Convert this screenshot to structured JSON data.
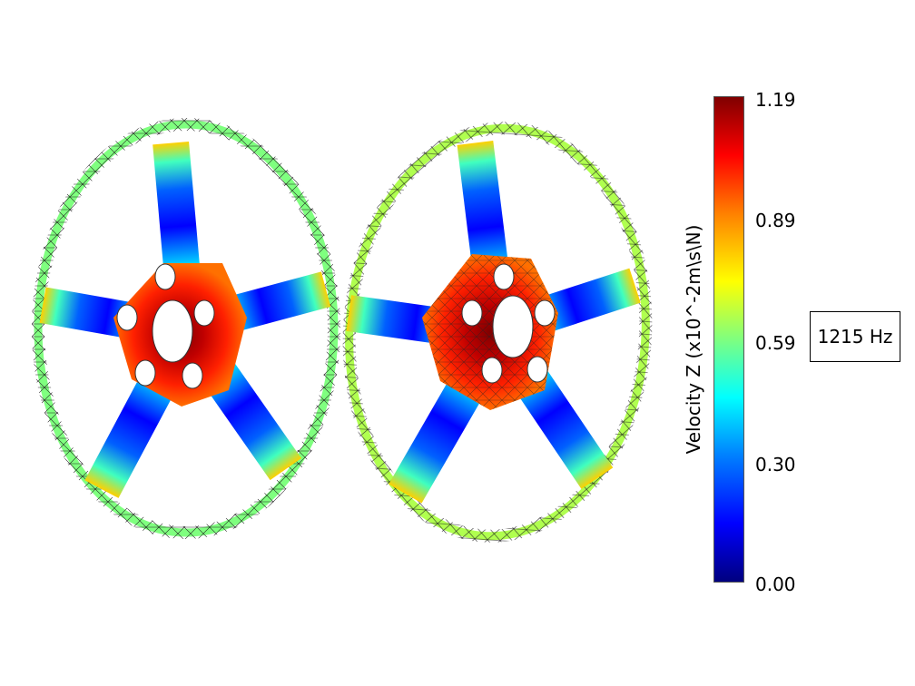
{
  "colorbar": {
    "title": "Velocity Z (x10^-2m\\s\\N)",
    "ticks": [
      "1.19",
      "0.89",
      "0.59",
      "0.30",
      "0.00"
    ],
    "min": 0.0,
    "max": 1.19,
    "colormap": "jet"
  },
  "frequency_label": "1215 Hz",
  "wheels": [
    {
      "name": "undeformed-mesh-wheel",
      "spokes": 5,
      "lug_holes": 5
    },
    {
      "name": "deformed-mesh-wheel",
      "spokes": 5,
      "lug_holes": 5
    }
  ],
  "colors": {
    "hub_high": "#b30000",
    "spoke_low": "#0000e0",
    "rim_mid": "#7fff7f",
    "mesh": "#222222"
  }
}
